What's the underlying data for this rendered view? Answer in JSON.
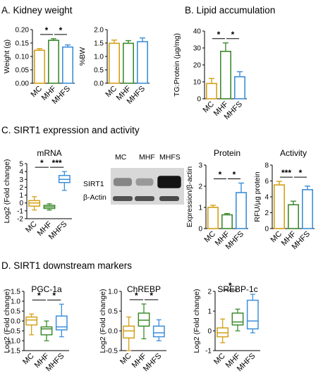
{
  "colors": {
    "MC": "#D4A017",
    "MHF": "#3D8B2F",
    "MHFS": "#3D8FD9"
  },
  "panels": {
    "A": {
      "title": "A. Kidney weight"
    },
    "B": {
      "title": "B. Lipid accumulation"
    },
    "C": {
      "title": "C. SIRT1 expression and activity"
    },
    "D": {
      "title": "D. SIRT1 downstream markers"
    }
  },
  "western_blot": {
    "lanes": [
      "MC",
      "MHF",
      "MHFS"
    ],
    "rows": [
      "SIRT1",
      "β-Actin"
    ],
    "sirt1_intensity": [
      0.35,
      0.25,
      0.95
    ],
    "actin_intensity": [
      0.7,
      0.7,
      0.75
    ]
  },
  "chart_data": [
    {
      "id": "kidney-weight-g",
      "type": "bar",
      "title": "",
      "ylabel": "Weight (g)",
      "categories": [
        "MC",
        "MHF",
        "MHFS"
      ],
      "values": [
        0.123,
        0.16,
        0.135
      ],
      "errors": [
        0.006,
        0.006,
        0.008
      ],
      "ylim": [
        0,
        0.2
      ],
      "yticks": [
        0.0,
        0.05,
        0.1,
        0.15,
        0.2
      ],
      "tick_decimals": 2,
      "significance": [
        {
          "from": 0,
          "to": 1,
          "label": "*"
        },
        {
          "from": 1,
          "to": 2,
          "label": "*"
        }
      ]
    },
    {
      "id": "kidney-weight-bw",
      "type": "bar",
      "title": "",
      "ylabel": "%BW",
      "categories": [
        "MC",
        "MHF",
        "MHFS"
      ],
      "values": [
        1.49,
        1.49,
        1.55
      ],
      "errors": [
        0.12,
        0.1,
        0.14
      ],
      "ylim": [
        0,
        2.0
      ],
      "yticks": [
        0.0,
        0.5,
        1.0,
        1.5,
        2.0
      ],
      "tick_decimals": 1,
      "significance": []
    },
    {
      "id": "lipid",
      "type": "bar",
      "title": "",
      "ylabel": "TG:Protein (µg/mg)",
      "categories": [
        "MC",
        "MHF",
        "MHFS"
      ],
      "values": [
        9,
        28,
        13
      ],
      "errors": [
        3,
        5,
        3
      ],
      "ylim": [
        0,
        40
      ],
      "yticks": [
        0,
        10,
        20,
        30,
        40
      ],
      "tick_decimals": 0,
      "significance": [
        {
          "from": 0,
          "to": 1,
          "label": "*"
        },
        {
          "from": 1,
          "to": 2,
          "label": "*"
        }
      ]
    },
    {
      "id": "sirt1-mrna",
      "type": "box",
      "title": "mRNA",
      "ylabel": "Log2 (Fold change)",
      "categories": [
        "MC",
        "MHF",
        "MHFS"
      ],
      "boxes": [
        {
          "min": -0.9,
          "q1": -0.4,
          "median": 0.0,
          "q3": 0.3,
          "max": 0.8
        },
        {
          "min": -0.9,
          "q1": -0.7,
          "median": -0.5,
          "q3": -0.3,
          "max": -0.1
        },
        {
          "min": 1.6,
          "q1": 2.6,
          "median": 3.0,
          "q3": 3.5,
          "max": 4.0
        }
      ],
      "ylim": [
        -2,
        5
      ],
      "yticks": [
        -2,
        -1,
        0,
        1,
        2,
        3,
        4,
        5
      ],
      "tick_decimals": 0,
      "significance": [
        {
          "from": 0,
          "to": 1,
          "label": "*"
        },
        {
          "from": 1,
          "to": 2,
          "label": "***"
        }
      ]
    },
    {
      "id": "sirt1-protein",
      "type": "bar",
      "title": "Protein",
      "ylabel": "Expression/β-actin",
      "categories": [
        "MC",
        "MHF",
        "MHFS"
      ],
      "values": [
        1.0,
        0.65,
        1.7
      ],
      "errors": [
        0.1,
        0.06,
        0.45
      ],
      "ylim": [
        0,
        3
      ],
      "yticks": [
        0,
        1,
        2,
        3
      ],
      "tick_decimals": 0,
      "significance": [
        {
          "from": 0,
          "to": 1,
          "label": "*"
        },
        {
          "from": 1,
          "to": 2,
          "label": "*"
        }
      ]
    },
    {
      "id": "sirt1-activity",
      "type": "bar",
      "title": "Activity",
      "ylabel": "RFU/µg protein",
      "categories": [
        "MC",
        "MHF",
        "MHFS"
      ],
      "values": [
        5.5,
        3.0,
        4.9
      ],
      "errors": [
        0.45,
        0.45,
        0.45
      ],
      "ylim": [
        0,
        8
      ],
      "yticks": [
        0,
        2,
        4,
        6,
        8
      ],
      "tick_decimals": 0,
      "significance": [
        {
          "from": 0,
          "to": 1,
          "label": "***"
        },
        {
          "from": 1,
          "to": 2,
          "label": "*"
        }
      ]
    },
    {
      "id": "pgc1a",
      "type": "box",
      "title": "PGC-1a",
      "ylabel": "Log2 (Fold change)",
      "categories": [
        "MC",
        "MHF",
        "MHFS"
      ],
      "boxes": [
        {
          "min": -0.7,
          "q1": -0.2,
          "median": 0.05,
          "q3": 0.2,
          "max": 0.35
        },
        {
          "min": -1.0,
          "q1": -0.7,
          "median": -0.4,
          "q3": -0.3,
          "max": 0.0
        },
        {
          "min": -0.8,
          "q1": -0.45,
          "median": -0.3,
          "q3": 0.25,
          "max": 0.85
        }
      ],
      "ylim": [
        -1.5,
        1.5
      ],
      "yticks": [
        -1.5,
        -1.0,
        -0.5,
        0.0,
        0.5,
        1.0,
        1.5
      ],
      "tick_decimals": 1,
      "significance": [
        {
          "from": 0,
          "to": 1,
          "label": "*"
        },
        {
          "from": 1,
          "to": 2,
          "label": "*"
        }
      ]
    },
    {
      "id": "chrebp",
      "type": "box",
      "title": "ChREBP",
      "ylabel": "Log2 (Fold change)",
      "categories": [
        "MC",
        "MHF",
        "MHFS"
      ],
      "boxes": [
        {
          "min": -0.5,
          "q1": -0.18,
          "median": 0.0,
          "q3": 0.12,
          "max": 0.35
        },
        {
          "min": -0.2,
          "q1": 0.12,
          "median": 0.27,
          "q3": 0.45,
          "max": 0.68
        },
        {
          "min": -0.25,
          "q1": -0.15,
          "median": -0.05,
          "q3": 0.12,
          "max": 0.28
        }
      ],
      "ylim": [
        -0.5,
        1.0
      ],
      "yticks": [
        -0.5,
        0.0,
        0.5,
        1.0
      ],
      "tick_decimals": 1,
      "significance": [
        {
          "from": 0,
          "to": 1,
          "label": "*"
        },
        {
          "from": 1,
          "to": 2,
          "label": "*"
        }
      ]
    },
    {
      "id": "srebp1c",
      "type": "box",
      "title": "SREBP-1c",
      "ylabel": "Log2 (Fold change)",
      "categories": [
        "MC",
        "MHF",
        "MHFS"
      ],
      "boxes": [
        {
          "min": -0.6,
          "q1": -0.3,
          "median": -0.1,
          "q3": 0.15,
          "max": 0.6
        },
        {
          "min": 0.0,
          "q1": 0.3,
          "median": 0.45,
          "q3": 0.9,
          "max": 1.1
        },
        {
          "min": -0.1,
          "q1": 0.1,
          "median": 0.5,
          "q3": 1.55,
          "max": 1.85
        }
      ],
      "ylim": [
        -1,
        2
      ],
      "yticks": [
        -1,
        0,
        1,
        2
      ],
      "tick_decimals": 0,
      "significance": [
        {
          "from": 0,
          "to": 1,
          "label": "*"
        }
      ]
    }
  ]
}
